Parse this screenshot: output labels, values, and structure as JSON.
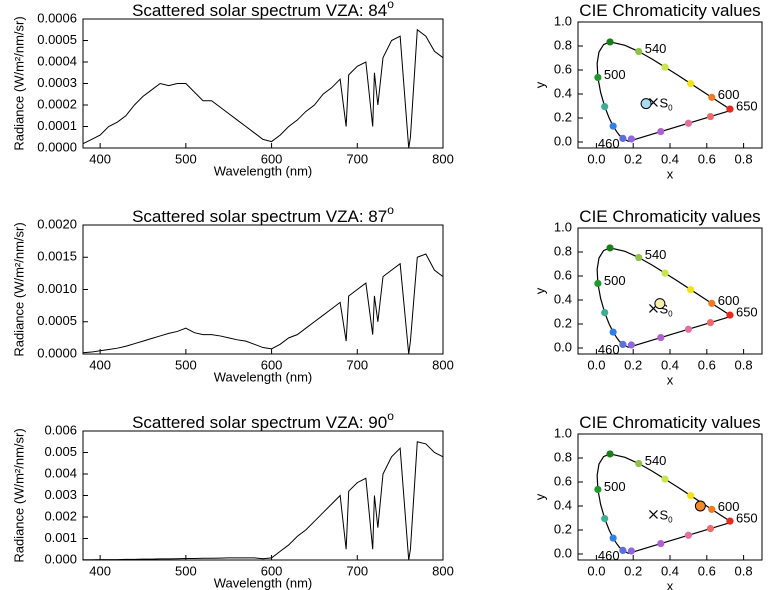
{
  "chart_data": [
    {
      "type": "line",
      "title": "Scattered solar spectrum VZA: 84",
      "title_sup": "o",
      "xlabel": "Wavelength (nm)",
      "ylabel": "Radiance (W/m²/nm/sr)",
      "xlim": [
        380,
        800
      ],
      "ylim": [
        0,
        0.0006
      ],
      "xticks": [
        400,
        500,
        600,
        700,
        800
      ],
      "yticks": [
        {
          "value": 0,
          "label": "0.0000"
        },
        {
          "value": 0.0001,
          "label": "0.0001"
        },
        {
          "value": 0.0002,
          "label": "0.0002"
        },
        {
          "value": 0.0003,
          "label": "0.0003"
        },
        {
          "value": 0.0004,
          "label": "0.0004"
        },
        {
          "value": 0.0005,
          "label": "0.0005"
        },
        {
          "value": 0.0006,
          "label": "0.0006"
        }
      ],
      "x": [
        380,
        390,
        400,
        410,
        420,
        430,
        440,
        450,
        460,
        470,
        480,
        490,
        500,
        510,
        520,
        530,
        540,
        550,
        560,
        570,
        580,
        590,
        600,
        610,
        620,
        630,
        640,
        650,
        660,
        670,
        680,
        687,
        690,
        700,
        710,
        718,
        720,
        724,
        730,
        740,
        750,
        760,
        762,
        770,
        780,
        790,
        800
      ],
      "series": [
        {
          "color": "#000000",
          "values": [
            2e-05,
            4e-05,
            6e-05,
            0.0001,
            0.00012,
            0.00015,
            0.0002,
            0.00024,
            0.00027,
            0.0003,
            0.00029,
            0.0003,
            0.0003,
            0.00026,
            0.00022,
            0.00022,
            0.00019,
            0.00016,
            0.00013,
            0.0001,
            7e-05,
            4e-05,
            3e-05,
            6e-05,
            0.0001,
            0.00013,
            0.00017,
            0.0002,
            0.00025,
            0.00028,
            0.00032,
            0.0001,
            0.00034,
            0.00038,
            0.0004,
            0.0001,
            0.00035,
            0.0002,
            0.00042,
            0.0005,
            0.00052,
            0,
            5e-05,
            0.00055,
            0.00052,
            0.00045,
            0.00042
          ]
        }
      ]
    },
    {
      "type": "chromaticity",
      "title": "CIE Chromaticity values",
      "xlabel": "x",
      "ylabel": "y",
      "xlim": [
        -0.1,
        0.9
      ],
      "ylim": [
        -0.05,
        1.0
      ],
      "xticks": [
        {
          "value": 0,
          "label": "0.0"
        },
        {
          "value": 0.2,
          "label": "0.2"
        },
        {
          "value": 0.4,
          "label": "0.4"
        },
        {
          "value": 0.6,
          "label": "0.6"
        },
        {
          "value": 0.8,
          "label": "0.8"
        }
      ],
      "yticks": [
        {
          "value": 0,
          "label": "0.0"
        },
        {
          "value": 0.2,
          "label": "0.2"
        },
        {
          "value": 0.4,
          "label": "0.4"
        },
        {
          "value": 0.6,
          "label": "0.6"
        },
        {
          "value": 0.8,
          "label": "0.8"
        },
        {
          "value": 1,
          "label": "1.0"
        }
      ],
      "locus": {
        "x": [
          0.174,
          0.144,
          0.124,
          0.11,
          0.091,
          0.069,
          0.045,
          0.023,
          0.008,
          0.004,
          0.014,
          0.039,
          0.074,
          0.155,
          0.23,
          0.302,
          0.373,
          0.444,
          0.512,
          0.575,
          0.627,
          0.691,
          0.726,
          0.735,
          0.174
        ],
        "y": [
          0.005,
          0.03,
          0.058,
          0.087,
          0.133,
          0.201,
          0.295,
          0.413,
          0.538,
          0.655,
          0.75,
          0.812,
          0.834,
          0.806,
          0.754,
          0.692,
          0.624,
          0.555,
          0.487,
          0.424,
          0.372,
          0.308,
          0.274,
          0.265,
          0.005
        ]
      },
      "points": {
        "x": [
          0.144,
          0.19,
          0.091,
          0.045,
          0.008,
          0.074,
          0.23,
          0.373,
          0.512,
          0.627,
          0.726,
          0.62,
          0.5,
          0.35
        ],
        "y": [
          0.03,
          0.025,
          0.133,
          0.295,
          0.538,
          0.834,
          0.754,
          0.624,
          0.487,
          0.372,
          0.274,
          0.212,
          0.156,
          0.087
        ],
        "colors": [
          "#5b6fe0",
          "#8e67e0",
          "#2f7fe6",
          "#3aae96",
          "#1f9a2a",
          "#1a7d1a",
          "#8fc24a",
          "#c8e64a",
          "#f2e21a",
          "#f07a22",
          "#e8281e",
          "#ee6b6b",
          "#e070a0",
          "#b060d0"
        ],
        "labels": [
          "460",
          null,
          null,
          null,
          "500",
          null,
          "540",
          null,
          null,
          "600",
          "650",
          null,
          null,
          null
        ]
      },
      "white_point": {
        "x": 0.31,
        "y": 0.33,
        "label": "S",
        "label_sub": "0"
      },
      "result": {
        "x": 0.27,
        "y": 0.32,
        "color": "#a9dcf0"
      }
    },
    {
      "type": "line",
      "title": "Scattered solar spectrum VZA: 87",
      "title_sup": "o",
      "xlabel": "Wavelength (nm)",
      "ylabel": "Radiance (W/m²/nm/sr)",
      "xlim": [
        380,
        800
      ],
      "ylim": [
        0,
        0.002
      ],
      "xticks": [
        400,
        500,
        600,
        700,
        800
      ],
      "yticks": [
        {
          "value": 0,
          "label": "0.0000"
        },
        {
          "value": 0.0005,
          "label": "0.0005"
        },
        {
          "value": 0.001,
          "label": "0.0010"
        },
        {
          "value": 0.0015,
          "label": "0.0015"
        },
        {
          "value": 0.002,
          "label": "0.0020"
        }
      ],
      "x": [
        380,
        390,
        400,
        410,
        420,
        430,
        440,
        450,
        460,
        470,
        480,
        490,
        500,
        510,
        520,
        530,
        540,
        550,
        560,
        570,
        580,
        590,
        600,
        610,
        620,
        630,
        640,
        650,
        660,
        670,
        680,
        687,
        690,
        700,
        710,
        718,
        720,
        724,
        730,
        740,
        750,
        760,
        762,
        770,
        780,
        790,
        800
      ],
      "series": [
        {
          "color": "#000000",
          "values": [
            2e-05,
            3e-05,
            5e-05,
            7e-05,
            9e-05,
            0.00012,
            0.00016,
            0.0002,
            0.00024,
            0.00028,
            0.00032,
            0.00035,
            0.0004,
            0.00033,
            0.0003,
            0.0003,
            0.00028,
            0.00025,
            0.00022,
            0.0002,
            0.00015,
            0.0001,
            8e-05,
            0.00015,
            0.00025,
            0.0003,
            0.0004,
            0.0005,
            0.0006,
            0.0007,
            0.0008,
            0.0002,
            0.0009,
            0.001,
            0.0011,
            0.0003,
            0.0009,
            0.0005,
            0.0012,
            0.0013,
            0.0014,
            0,
            0.0002,
            0.0015,
            0.00155,
            0.0013,
            0.0012
          ]
        }
      ]
    },
    {
      "type": "chromaticity",
      "title": "CIE Chromaticity values",
      "xlabel": "x",
      "ylabel": "y",
      "xlim": [
        -0.1,
        0.9
      ],
      "ylim": [
        -0.05,
        1.0
      ],
      "xticks": [
        {
          "value": 0,
          "label": "0.0"
        },
        {
          "value": 0.2,
          "label": "0.2"
        },
        {
          "value": 0.4,
          "label": "0.4"
        },
        {
          "value": 0.6,
          "label": "0.6"
        },
        {
          "value": 0.8,
          "label": "0.8"
        }
      ],
      "yticks": [
        {
          "value": 0,
          "label": "0.0"
        },
        {
          "value": 0.2,
          "label": "0.2"
        },
        {
          "value": 0.4,
          "label": "0.4"
        },
        {
          "value": 0.6,
          "label": "0.6"
        },
        {
          "value": 0.8,
          "label": "0.8"
        },
        {
          "value": 1,
          "label": "1.0"
        }
      ],
      "locus": {
        "x": [
          0.174,
          0.144,
          0.124,
          0.11,
          0.091,
          0.069,
          0.045,
          0.023,
          0.008,
          0.004,
          0.014,
          0.039,
          0.074,
          0.155,
          0.23,
          0.302,
          0.373,
          0.444,
          0.512,
          0.575,
          0.627,
          0.691,
          0.726,
          0.735,
          0.174
        ],
        "y": [
          0.005,
          0.03,
          0.058,
          0.087,
          0.133,
          0.201,
          0.295,
          0.413,
          0.538,
          0.655,
          0.75,
          0.812,
          0.834,
          0.806,
          0.754,
          0.692,
          0.624,
          0.555,
          0.487,
          0.424,
          0.372,
          0.308,
          0.274,
          0.265,
          0.005
        ]
      },
      "points": {
        "x": [
          0.144,
          0.19,
          0.091,
          0.045,
          0.008,
          0.074,
          0.23,
          0.373,
          0.512,
          0.627,
          0.726,
          0.62,
          0.5,
          0.35
        ],
        "y": [
          0.03,
          0.025,
          0.133,
          0.295,
          0.538,
          0.834,
          0.754,
          0.624,
          0.487,
          0.372,
          0.274,
          0.212,
          0.156,
          0.087
        ],
        "colors": [
          "#5b6fe0",
          "#8e67e0",
          "#2f7fe6",
          "#3aae96",
          "#1f9a2a",
          "#1a7d1a",
          "#8fc24a",
          "#c8e64a",
          "#f2e21a",
          "#f07a22",
          "#e8281e",
          "#ee6b6b",
          "#e070a0",
          "#b060d0"
        ],
        "labels": [
          "460",
          null,
          null,
          null,
          "500",
          null,
          "540",
          null,
          null,
          "600",
          "650",
          null,
          null,
          null
        ]
      },
      "white_point": {
        "x": 0.31,
        "y": 0.33,
        "label": "S",
        "label_sub": "0"
      },
      "result": {
        "x": 0.345,
        "y": 0.37,
        "color": "#f7efb0"
      }
    },
    {
      "type": "line",
      "title": "Scattered solar spectrum VZA: 90",
      "title_sup": "o",
      "xlabel": "Wavelength (nm)",
      "ylabel": "Radiance (W/m²/nm/sr)",
      "xlim": [
        380,
        800
      ],
      "ylim": [
        0,
        0.006
      ],
      "xticks": [
        400,
        500,
        600,
        700,
        800
      ],
      "yticks": [
        {
          "value": 0,
          "label": "0.000"
        },
        {
          "value": 0.001,
          "label": "0.001"
        },
        {
          "value": 0.002,
          "label": "0.002"
        },
        {
          "value": 0.003,
          "label": "0.003"
        },
        {
          "value": 0.004,
          "label": "0.004"
        },
        {
          "value": 0.005,
          "label": "0.005"
        },
        {
          "value": 0.006,
          "label": "0.006"
        }
      ],
      "x": [
        380,
        390,
        400,
        410,
        420,
        430,
        440,
        450,
        460,
        470,
        480,
        490,
        500,
        510,
        520,
        530,
        540,
        550,
        560,
        570,
        580,
        590,
        600,
        610,
        620,
        630,
        640,
        650,
        660,
        670,
        680,
        687,
        690,
        700,
        710,
        718,
        720,
        724,
        730,
        740,
        750,
        760,
        762,
        770,
        780,
        790,
        800
      ],
      "series": [
        {
          "color": "#000000",
          "values": [
            1e-05,
            1e-05,
            2e-05,
            2e-05,
            2e-05,
            3e-05,
            3e-05,
            4e-05,
            4e-05,
            5e-05,
            5e-05,
            6e-05,
            7e-05,
            7e-05,
            8e-05,
            8e-05,
            9e-05,
            0.0001,
            0.0001,
            0.0001,
            0.0001,
            6e-05,
            0.0001,
            0.0004,
            0.0007,
            0.0011,
            0.0014,
            0.0018,
            0.0022,
            0.0026,
            0.003,
            0.0005,
            0.0032,
            0.0036,
            0.0038,
            0.0005,
            0.003,
            0.0015,
            0.004,
            0.0048,
            0.0052,
            0,
            0.0005,
            0.0055,
            0.0054,
            0.005,
            0.0048
          ]
        }
      ]
    },
    {
      "type": "chromaticity",
      "title": "CIE Chromaticity values",
      "xlabel": "x",
      "ylabel": "y",
      "xlim": [
        -0.1,
        0.9
      ],
      "ylim": [
        -0.05,
        1.0
      ],
      "xticks": [
        {
          "value": 0,
          "label": "0.0"
        },
        {
          "value": 0.2,
          "label": "0.2"
        },
        {
          "value": 0.4,
          "label": "0.4"
        },
        {
          "value": 0.6,
          "label": "0.6"
        },
        {
          "value": 0.8,
          "label": "0.8"
        }
      ],
      "yticks": [
        {
          "value": 0,
          "label": "0.0"
        },
        {
          "value": 0.2,
          "label": "0.2"
        },
        {
          "value": 0.4,
          "label": "0.4"
        },
        {
          "value": 0.6,
          "label": "0.6"
        },
        {
          "value": 0.8,
          "label": "0.8"
        },
        {
          "value": 1,
          "label": "1.0"
        }
      ],
      "locus": {
        "x": [
          0.174,
          0.144,
          0.124,
          0.11,
          0.091,
          0.069,
          0.045,
          0.023,
          0.008,
          0.004,
          0.014,
          0.039,
          0.074,
          0.155,
          0.23,
          0.302,
          0.373,
          0.444,
          0.512,
          0.575,
          0.627,
          0.691,
          0.726,
          0.735,
          0.174
        ],
        "y": [
          0.005,
          0.03,
          0.058,
          0.087,
          0.133,
          0.201,
          0.295,
          0.413,
          0.538,
          0.655,
          0.75,
          0.812,
          0.834,
          0.806,
          0.754,
          0.692,
          0.624,
          0.555,
          0.487,
          0.424,
          0.372,
          0.308,
          0.274,
          0.265,
          0.005
        ]
      },
      "points": {
        "x": [
          0.144,
          0.19,
          0.091,
          0.045,
          0.008,
          0.074,
          0.23,
          0.373,
          0.512,
          0.627,
          0.726,
          0.62,
          0.5,
          0.35
        ],
        "y": [
          0.03,
          0.025,
          0.133,
          0.295,
          0.538,
          0.834,
          0.754,
          0.624,
          0.487,
          0.372,
          0.274,
          0.212,
          0.156,
          0.087
        ],
        "colors": [
          "#5b6fe0",
          "#8e67e0",
          "#2f7fe6",
          "#3aae96",
          "#1f9a2a",
          "#1a7d1a",
          "#8fc24a",
          "#c8e64a",
          "#f2e21a",
          "#f07a22",
          "#e8281e",
          "#ee6b6b",
          "#e070a0",
          "#b060d0"
        ],
        "labels": [
          "460",
          null,
          null,
          null,
          "500",
          null,
          "540",
          null,
          null,
          "600",
          "650",
          null,
          null,
          null
        ]
      },
      "white_point": {
        "x": 0.31,
        "y": 0.33,
        "label": "S",
        "label_sub": "0"
      },
      "result": {
        "x": 0.565,
        "y": 0.4,
        "color": "#f08a2a"
      }
    }
  ]
}
